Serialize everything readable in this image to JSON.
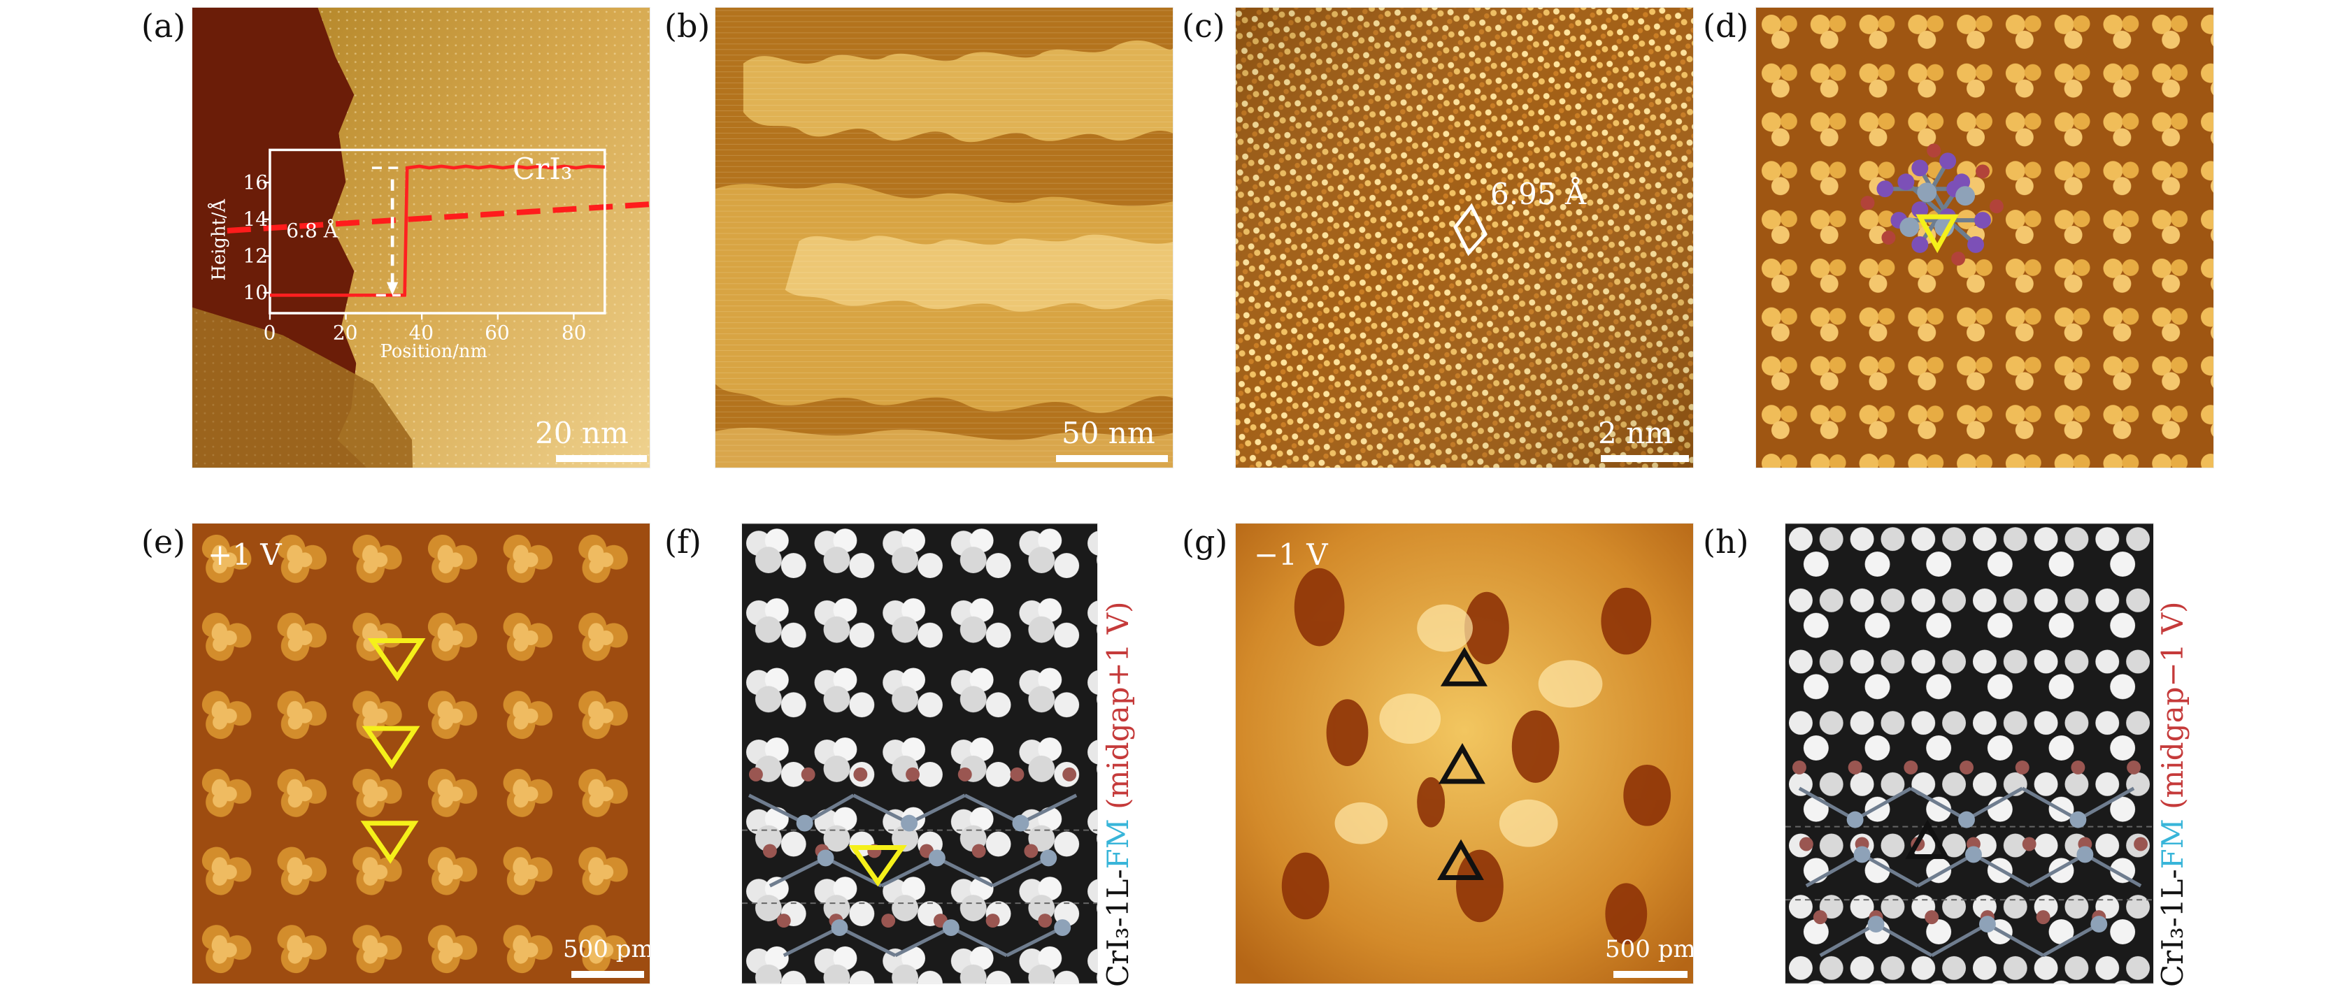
{
  "panels": {
    "a": {
      "label": "(a)",
      "text": "CrI₃",
      "scale": "20 nm"
    },
    "b": {
      "label": "(b)",
      "scale": "50 nm"
    },
    "c": {
      "label": "(c)",
      "text": "6.95 Å",
      "scale": "2 nm"
    },
    "d": {
      "label": "(d)"
    },
    "e": {
      "label": "(e)",
      "text": "+1 V",
      "scale": "500 pm"
    },
    "f": {
      "label": "(f)"
    },
    "g": {
      "label": "(g)",
      "text": "−1 V",
      "scale": "500 pm"
    },
    "h": {
      "label": "(h)"
    }
  },
  "inset": {
    "ylabel": "Height/Å",
    "xlabel": "Position/nm",
    "step_label": "6.8 Å",
    "yticks": [
      "16",
      "14",
      "12",
      "10"
    ],
    "xticks": [
      "0",
      "20",
      "40",
      "60",
      "80"
    ]
  },
  "side_labels": {
    "f": {
      "prefix": "CrI₃-1L-",
      "fm": "FM",
      "suffix_red": "(midgap+1 V)"
    },
    "h": {
      "prefix": "CrI₃-1L-",
      "fm": "FM",
      "suffix_red": "(midgap−1 V)"
    }
  },
  "colors": {
    "highlight_red": "#c53a3a",
    "highlight_cyan": "#38b5d9",
    "triangle_yellow": "#f5f01a",
    "triangle_black": "#111111"
  }
}
